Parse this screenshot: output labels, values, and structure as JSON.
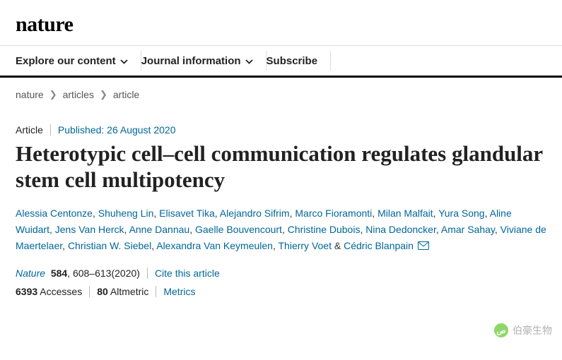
{
  "logo": "nature",
  "nav": {
    "explore": "Explore our content",
    "journal": "Journal information",
    "subscribe": "Subscribe"
  },
  "breadcrumb": {
    "root": "nature",
    "section": "articles",
    "current": "article"
  },
  "article": {
    "type": "Article",
    "published_label": "Published: 26 August 2020",
    "title": "Heterotypic cell–cell communication regulates glandular stem cell multipotency",
    "authors": [
      "Alessia Centonze",
      "Shuheng Lin",
      "Elisavet Tika",
      "Alejandro Sifrim",
      "Marco Fioramonti",
      "Milan Malfait",
      "Yura Song",
      "Aline Wuidart",
      "Jens Van Herck",
      "Anne Dannau",
      "Gaelle Bouvencourt",
      "Christine Dubois",
      "Nina Dedoncker",
      "Amar Sahay",
      "Viviane de Maertelaer",
      "Christian W. Siebel",
      "Alexandra Van Keymeulen",
      "Thierry Voet"
    ],
    "last_author": "Cédric Blanpain",
    "amp": "&",
    "journal": "Nature",
    "volume": "584",
    "pages": ", 608–613(2020)",
    "cite_label": "Cite this article",
    "accesses_num": "6393",
    "accesses_label": "Accesses",
    "altmetric_num": "80",
    "altmetric_label": "Altmetric",
    "metrics_label": "Metrics"
  },
  "watermark": {
    "icon": "ص",
    "text": "伯豪生物"
  },
  "colors": {
    "link": "#006699",
    "text": "#222222",
    "border": "#000000"
  }
}
